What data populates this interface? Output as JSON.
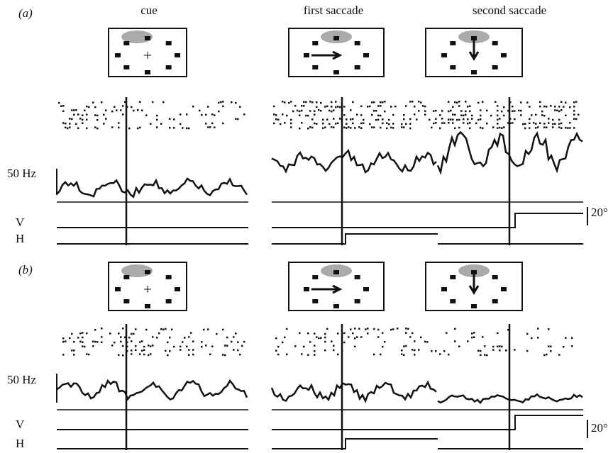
{
  "columns": [
    "cue",
    "first saccade",
    "second saccade"
  ],
  "panels": [
    {
      "label": "(a)",
      "rate_scale": "50 Hz",
      "vertical": "V",
      "horizontal": "H",
      "angle_scale": "20°"
    },
    {
      "label": "(b)",
      "rate_scale": "50 Hz",
      "vertical": "V",
      "horizontal": "H",
      "angle_scale": "20°"
    }
  ]
}
